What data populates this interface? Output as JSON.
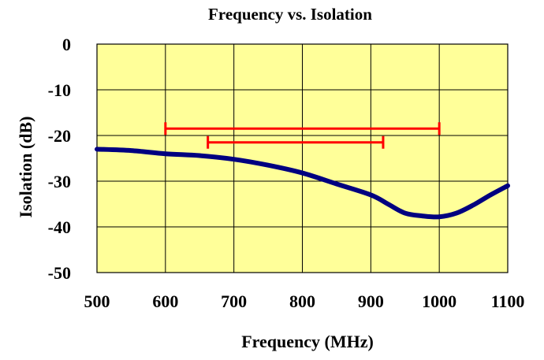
{
  "chart_data": {
    "type": "line",
    "title": "Frequency vs. Isolation",
    "xlabel": "Frequency (MHz)",
    "ylabel": "Isolation (dB)",
    "xlim": [
      500,
      1100
    ],
    "ylim": [
      -50,
      0
    ],
    "x_ticks": [
      500,
      600,
      700,
      800,
      900,
      1000,
      1100
    ],
    "y_ticks": [
      0,
      -10,
      -20,
      -30,
      -40,
      -50
    ],
    "x_tick_labels": [
      "500",
      "600",
      "700",
      "800",
      "900",
      "1000",
      "1100"
    ],
    "y_tick_labels": [
      "0",
      "-10",
      "-20",
      "-30",
      "-40",
      "-50"
    ],
    "grid": true,
    "legend": "none",
    "plot_background": "#ffff99",
    "series": [
      {
        "color": "#000080",
        "x": [
          500,
          550,
          600,
          650,
          700,
          750,
          800,
          850,
          900,
          925,
          950,
          975,
          1000,
          1025,
          1050,
          1075,
          1100
        ],
        "y": [
          -23.0,
          -23.3,
          -24.0,
          -24.4,
          -25.2,
          -26.5,
          -28.2,
          -30.6,
          -33.0,
          -35.0,
          -37.0,
          -37.6,
          -37.8,
          -37.0,
          -35.2,
          -33.0,
          -31.0
        ]
      }
    ],
    "brackets": [
      {
        "color": "#ff0000",
        "x_start": 600,
        "x_end": 1000,
        "y": -18.5
      },
      {
        "color": "#ff0000",
        "x_start": 662,
        "x_end": 918,
        "y": -21.5
      }
    ]
  }
}
